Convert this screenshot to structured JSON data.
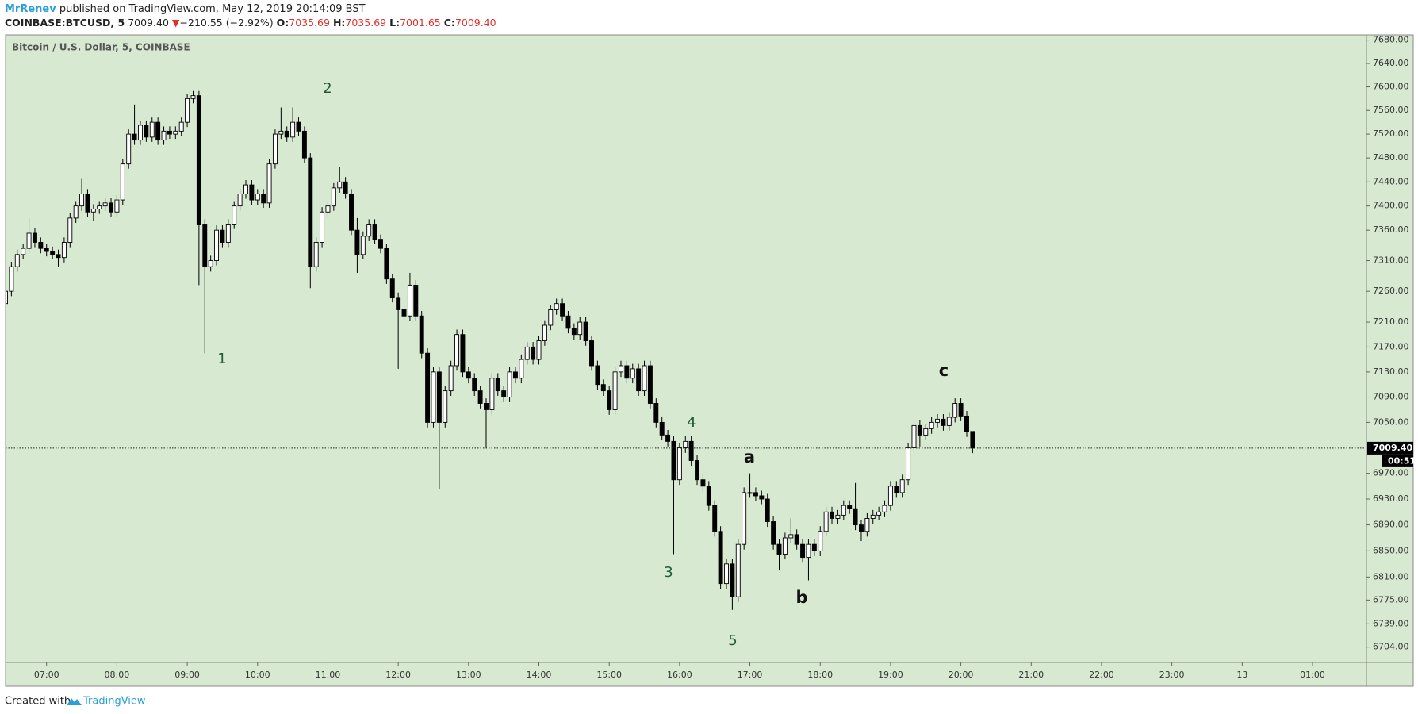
{
  "header": {
    "author": "MrRenev",
    "published": "published on TradingView.com, May 12, 2019 20:14:09 BST",
    "symbol": "COINBASE:BTCUSD, 5",
    "price": "7009.40",
    "arrow": "▼",
    "change": "−210.55 (−2.92%)",
    "o_label": "O:",
    "o": "7035.69",
    "h_label": "H:",
    "h": "7035.69",
    "l_label": "L:",
    "l": "7001.65",
    "c_label": "C:",
    "c": "7009.40"
  },
  "chart_data": {
    "type": "candlestick",
    "title": "Bitcoin / U.S. Dollar, 5, COINBASE",
    "log_scale": true,
    "grid": false,
    "up_color": "#ffffff",
    "down_color": "#000000",
    "background": "#d7e9d1",
    "xlim": [
      385,
      1546
    ],
    "ylim": [
      6681,
      7689
    ],
    "xticks": [
      {
        "value": 420,
        "label": "07:00"
      },
      {
        "value": 480,
        "label": "08:00"
      },
      {
        "value": 540,
        "label": "09:00"
      },
      {
        "value": 600,
        "label": "10:00"
      },
      {
        "value": 660,
        "label": "11:00"
      },
      {
        "value": 720,
        "label": "12:00"
      },
      {
        "value": 780,
        "label": "13:00"
      },
      {
        "value": 840,
        "label": "14:00"
      },
      {
        "value": 900,
        "label": "15:00"
      },
      {
        "value": 960,
        "label": "16:00"
      },
      {
        "value": 1020,
        "label": "17:00"
      },
      {
        "value": 1080,
        "label": "18:00"
      },
      {
        "value": 1140,
        "label": "19:00"
      },
      {
        "value": 1200,
        "label": "20:00"
      },
      {
        "value": 1260,
        "label": "21:00"
      },
      {
        "value": 1320,
        "label": "22:00"
      },
      {
        "value": 1380,
        "label": "23:00"
      },
      {
        "value": 1440,
        "label": "13"
      },
      {
        "value": 1500,
        "label": "01:00"
      }
    ],
    "yticks": [
      {
        "value": 7680,
        "label": "7680.00"
      },
      {
        "value": 7640,
        "label": "7640.00"
      },
      {
        "value": 7600,
        "label": "7600.00"
      },
      {
        "value": 7560,
        "label": "7560.00"
      },
      {
        "value": 7520,
        "label": "7520.00"
      },
      {
        "value": 7480,
        "label": "7480.00"
      },
      {
        "value": 7440,
        "label": "7440.00"
      },
      {
        "value": 7400,
        "label": "7400.00"
      },
      {
        "value": 7360,
        "label": "7360.00"
      },
      {
        "value": 7310,
        "label": "7310.00"
      },
      {
        "value": 7260,
        "label": "7260.00"
      },
      {
        "value": 7210,
        "label": "7210.00"
      },
      {
        "value": 7170,
        "label": "7170.00"
      },
      {
        "value": 7130,
        "label": "7130.00"
      },
      {
        "value": 7090,
        "label": "7090.00"
      },
      {
        "value": 7050,
        "label": "7050.00"
      },
      {
        "value": 6970,
        "label": "6970.00"
      },
      {
        "value": 6930,
        "label": "6930.00"
      },
      {
        "value": 6890,
        "label": "6890.00"
      },
      {
        "value": 6850,
        "label": "6850.00"
      },
      {
        "value": 6810,
        "label": "6810.00"
      },
      {
        "value": 6775,
        "label": "6775.00"
      },
      {
        "value": 6739,
        "label": "6739.00"
      },
      {
        "value": 6704,
        "label": "6704.00"
      }
    ],
    "last_price": {
      "value": 7009.4,
      "label": "7009.40"
    },
    "countdown": "00:51",
    "annotations": [
      "1",
      "2",
      "3",
      "4",
      "5",
      "a",
      "b",
      "c"
    ],
    "candles": {
      "x": [
        385,
        390,
        395,
        400,
        405,
        410,
        415,
        420,
        425,
        430,
        435,
        440,
        445,
        450,
        455,
        460,
        465,
        470,
        475,
        480,
        485,
        490,
        495,
        500,
        505,
        510,
        515,
        520,
        525,
        530,
        535,
        540,
        545,
        550,
        555,
        560,
        565,
        570,
        575,
        580,
        585,
        590,
        595,
        600,
        605,
        610,
        615,
        620,
        625,
        630,
        635,
        640,
        645,
        650,
        655,
        660,
        665,
        670,
        675,
        680,
        685,
        690,
        695,
        700,
        705,
        710,
        715,
        720,
        725,
        730,
        735,
        740,
        745,
        750,
        755,
        760,
        765,
        770,
        775,
        780,
        785,
        790,
        795,
        800,
        805,
        810,
        815,
        820,
        825,
        830,
        835,
        840,
        845,
        850,
        855,
        860,
        865,
        870,
        875,
        880,
        885,
        890,
        895,
        900,
        905,
        910,
        915,
        920,
        925,
        930,
        935,
        940,
        945,
        950,
        955,
        960,
        965,
        970,
        975,
        980,
        985,
        990,
        995,
        1000,
        1005,
        1010,
        1015,
        1020,
        1025,
        1030,
        1035,
        1040,
        1045,
        1050,
        1055,
        1060,
        1065,
        1070,
        1075,
        1080,
        1085,
        1090,
        1095,
        1100,
        1105,
        1110,
        1115,
        1120,
        1125,
        1130,
        1135,
        1140,
        1145,
        1150,
        1155,
        1160,
        1165,
        1170,
        1175,
        1180,
        1185,
        1190,
        1195,
        1200,
        1205,
        1210
      ],
      "open": [
        7240,
        7260,
        7300,
        7320,
        7330,
        7355,
        7340,
        7330,
        7325,
        7320,
        7315,
        7340,
        7380,
        7400,
        7420,
        7390,
        7395,
        7400,
        7405,
        7390,
        7410,
        7470,
        7520,
        7510,
        7535,
        7515,
        7540,
        7510,
        7525,
        7520,
        7525,
        7540,
        7580,
        7585,
        7370,
        7300,
        7310,
        7360,
        7340,
        7370,
        7400,
        7420,
        7435,
        7410,
        7420,
        7405,
        7470,
        7520,
        7525,
        7515,
        7540,
        7525,
        7480,
        7300,
        7340,
        7390,
        7400,
        7430,
        7440,
        7420,
        7360,
        7320,
        7350,
        7370,
        7345,
        7330,
        7280,
        7250,
        7230,
        7220,
        7270,
        7220,
        7160,
        7050,
        7130,
        7050,
        7100,
        7140,
        7190,
        7130,
        7120,
        7100,
        7080,
        7070,
        7120,
        7100,
        7090,
        7130,
        7120,
        7150,
        7170,
        7150,
        7180,
        7205,
        7230,
        7240,
        7220,
        7200,
        7190,
        7210,
        7180,
        7140,
        7110,
        7100,
        7070,
        7130,
        7140,
        7120,
        7135,
        7100,
        7140,
        7080,
        7050,
        7030,
        7020,
        6960,
        7010,
        7020,
        6990,
        6960,
        6950,
        6920,
        6880,
        6800,
        6830,
        6780,
        6860,
        6940,
        6940,
        6935,
        6930,
        6895,
        6860,
        6845,
        6870,
        6875,
        6860,
        6840,
        6860,
        6850,
        6880,
        6910,
        6900,
        6905,
        6920,
        6915,
        6890,
        6880,
        6900,
        6905,
        6910,
        6920,
        6950,
        6940,
        6960,
        7010,
        7045,
        7030,
        7040,
        7050,
        7055,
        7045,
        7058,
        7080,
        7060,
        7035.69
      ],
      "high": [
        7268,
        7308,
        7328,
        7338,
        7380,
        7363,
        7348,
        7338,
        7333,
        7328,
        7348,
        7388,
        7408,
        7445,
        7428,
        7403,
        7408,
        7413,
        7413,
        7418,
        7478,
        7528,
        7570,
        7543,
        7543,
        7548,
        7548,
        7533,
        7533,
        7533,
        7548,
        7588,
        7593,
        7593,
        7378,
        7318,
        7368,
        7368,
        7378,
        7408,
        7428,
        7443,
        7443,
        7428,
        7428,
        7478,
        7528,
        7565,
        7533,
        7565,
        7548,
        7533,
        7488,
        7348,
        7398,
        7408,
        7438,
        7465,
        7448,
        7428,
        7380,
        7358,
        7378,
        7378,
        7353,
        7338,
        7288,
        7258,
        7238,
        7290,
        7278,
        7228,
        7168,
        7138,
        7138,
        7108,
        7148,
        7198,
        7198,
        7138,
        7128,
        7108,
        7088,
        7128,
        7128,
        7108,
        7138,
        7138,
        7158,
        7178,
        7178,
        7188,
        7213,
        7238,
        7248,
        7248,
        7228,
        7208,
        7218,
        7218,
        7188,
        7148,
        7118,
        7108,
        7138,
        7148,
        7148,
        7143,
        7143,
        7148,
        7148,
        7088,
        7058,
        7038,
        7028,
        7018,
        7028,
        7028,
        6998,
        6968,
        6958,
        6928,
        6888,
        6838,
        6838,
        6868,
        6948,
        6970,
        6948,
        6943,
        6938,
        6903,
        6868,
        6878,
        6900,
        6883,
        6868,
        6868,
        6868,
        6888,
        6918,
        6918,
        6913,
        6928,
        6928,
        6955,
        6898,
        6908,
        6913,
        6918,
        6928,
        6958,
        6958,
        6968,
        7018,
        7053,
        7053,
        7048,
        7058,
        7063,
        7063,
        7066,
        7088,
        7088,
        7068,
        7035.69
      ],
      "low": [
        7232,
        7252,
        7292,
        7312,
        7322,
        7332,
        7322,
        7317,
        7312,
        7300,
        7307,
        7332,
        7372,
        7392,
        7382,
        7375,
        7387,
        7392,
        7382,
        7382,
        7402,
        7462,
        7502,
        7502,
        7507,
        7507,
        7502,
        7502,
        7512,
        7512,
        7517,
        7532,
        7572,
        7270,
        7160,
        7292,
        7302,
        7332,
        7332,
        7362,
        7392,
        7412,
        7402,
        7402,
        7397,
        7397,
        7462,
        7512,
        7507,
        7507,
        7517,
        7472,
        7265,
        7292,
        7332,
        7382,
        7392,
        7422,
        7412,
        7352,
        7290,
        7312,
        7342,
        7337,
        7322,
        7272,
        7242,
        7135,
        7212,
        7212,
        7212,
        7152,
        7042,
        7042,
        6945,
        7042,
        7092,
        7132,
        7122,
        7112,
        7092,
        7072,
        7010,
        7062,
        7092,
        7082,
        7082,
        7112,
        7112,
        7142,
        7142,
        7142,
        7172,
        7197,
        7222,
        7212,
        7192,
        7182,
        7182,
        7172,
        7132,
        7102,
        7092,
        7062,
        7062,
        7122,
        7112,
        7112,
        7092,
        7092,
        7072,
        7042,
        7022,
        7012,
        6845,
        6952,
        7002,
        6982,
        6952,
        6942,
        6912,
        6872,
        6792,
        6792,
        6760,
        6772,
        6852,
        6932,
        6927,
        6922,
        6887,
        6852,
        6820,
        6837,
        6862,
        6852,
        6832,
        6805,
        6842,
        6842,
        6872,
        6892,
        6892,
        6897,
        6907,
        6882,
        6865,
        6872,
        6892,
        6897,
        6902,
        6912,
        6932,
        6932,
        6952,
        7002,
        7012,
        7022,
        7032,
        7042,
        7037,
        7037,
        7050,
        7052,
        7027,
        7001.65
      ],
      "close": [
        7260,
        7300,
        7320,
        7330,
        7355,
        7340,
        7330,
        7325,
        7320,
        7315,
        7340,
        7380,
        7400,
        7420,
        7390,
        7395,
        7400,
        7405,
        7390,
        7410,
        7470,
        7520,
        7510,
        7535,
        7515,
        7540,
        7510,
        7525,
        7520,
        7525,
        7540,
        7580,
        7585,
        7370,
        7300,
        7310,
        7360,
        7340,
        7370,
        7400,
        7420,
        7435,
        7410,
        7420,
        7405,
        7470,
        7520,
        7525,
        7515,
        7540,
        7525,
        7480,
        7300,
        7340,
        7390,
        7400,
        7430,
        7440,
        7420,
        7360,
        7320,
        7350,
        7370,
        7345,
        7330,
        7280,
        7250,
        7230,
        7220,
        7270,
        7220,
        7160,
        7050,
        7130,
        7050,
        7100,
        7140,
        7190,
        7130,
        7120,
        7100,
        7080,
        7070,
        7120,
        7100,
        7090,
        7130,
        7120,
        7150,
        7170,
        7150,
        7180,
        7205,
        7230,
        7240,
        7220,
        7200,
        7190,
        7210,
        7180,
        7140,
        7110,
        7100,
        7070,
        7130,
        7140,
        7120,
        7135,
        7100,
        7140,
        7080,
        7050,
        7030,
        7020,
        6960,
        7010,
        7020,
        6990,
        6960,
        6950,
        6920,
        6880,
        6800,
        6830,
        6780,
        6860,
        6940,
        6940,
        6935,
        6930,
        6895,
        6860,
        6845,
        6870,
        6875,
        6860,
        6840,
        6860,
        6850,
        6880,
        6910,
        6900,
        6905,
        6920,
        6915,
        6890,
        6880,
        6900,
        6905,
        6910,
        6920,
        6950,
        6940,
        6960,
        7010,
        7045,
        7030,
        7040,
        7050,
        7055,
        7045,
        7058,
        7080,
        7060,
        7035.69,
        7009.4
      ]
    }
  },
  "footer": {
    "created": "Created with",
    "brand": "TradingView"
  }
}
